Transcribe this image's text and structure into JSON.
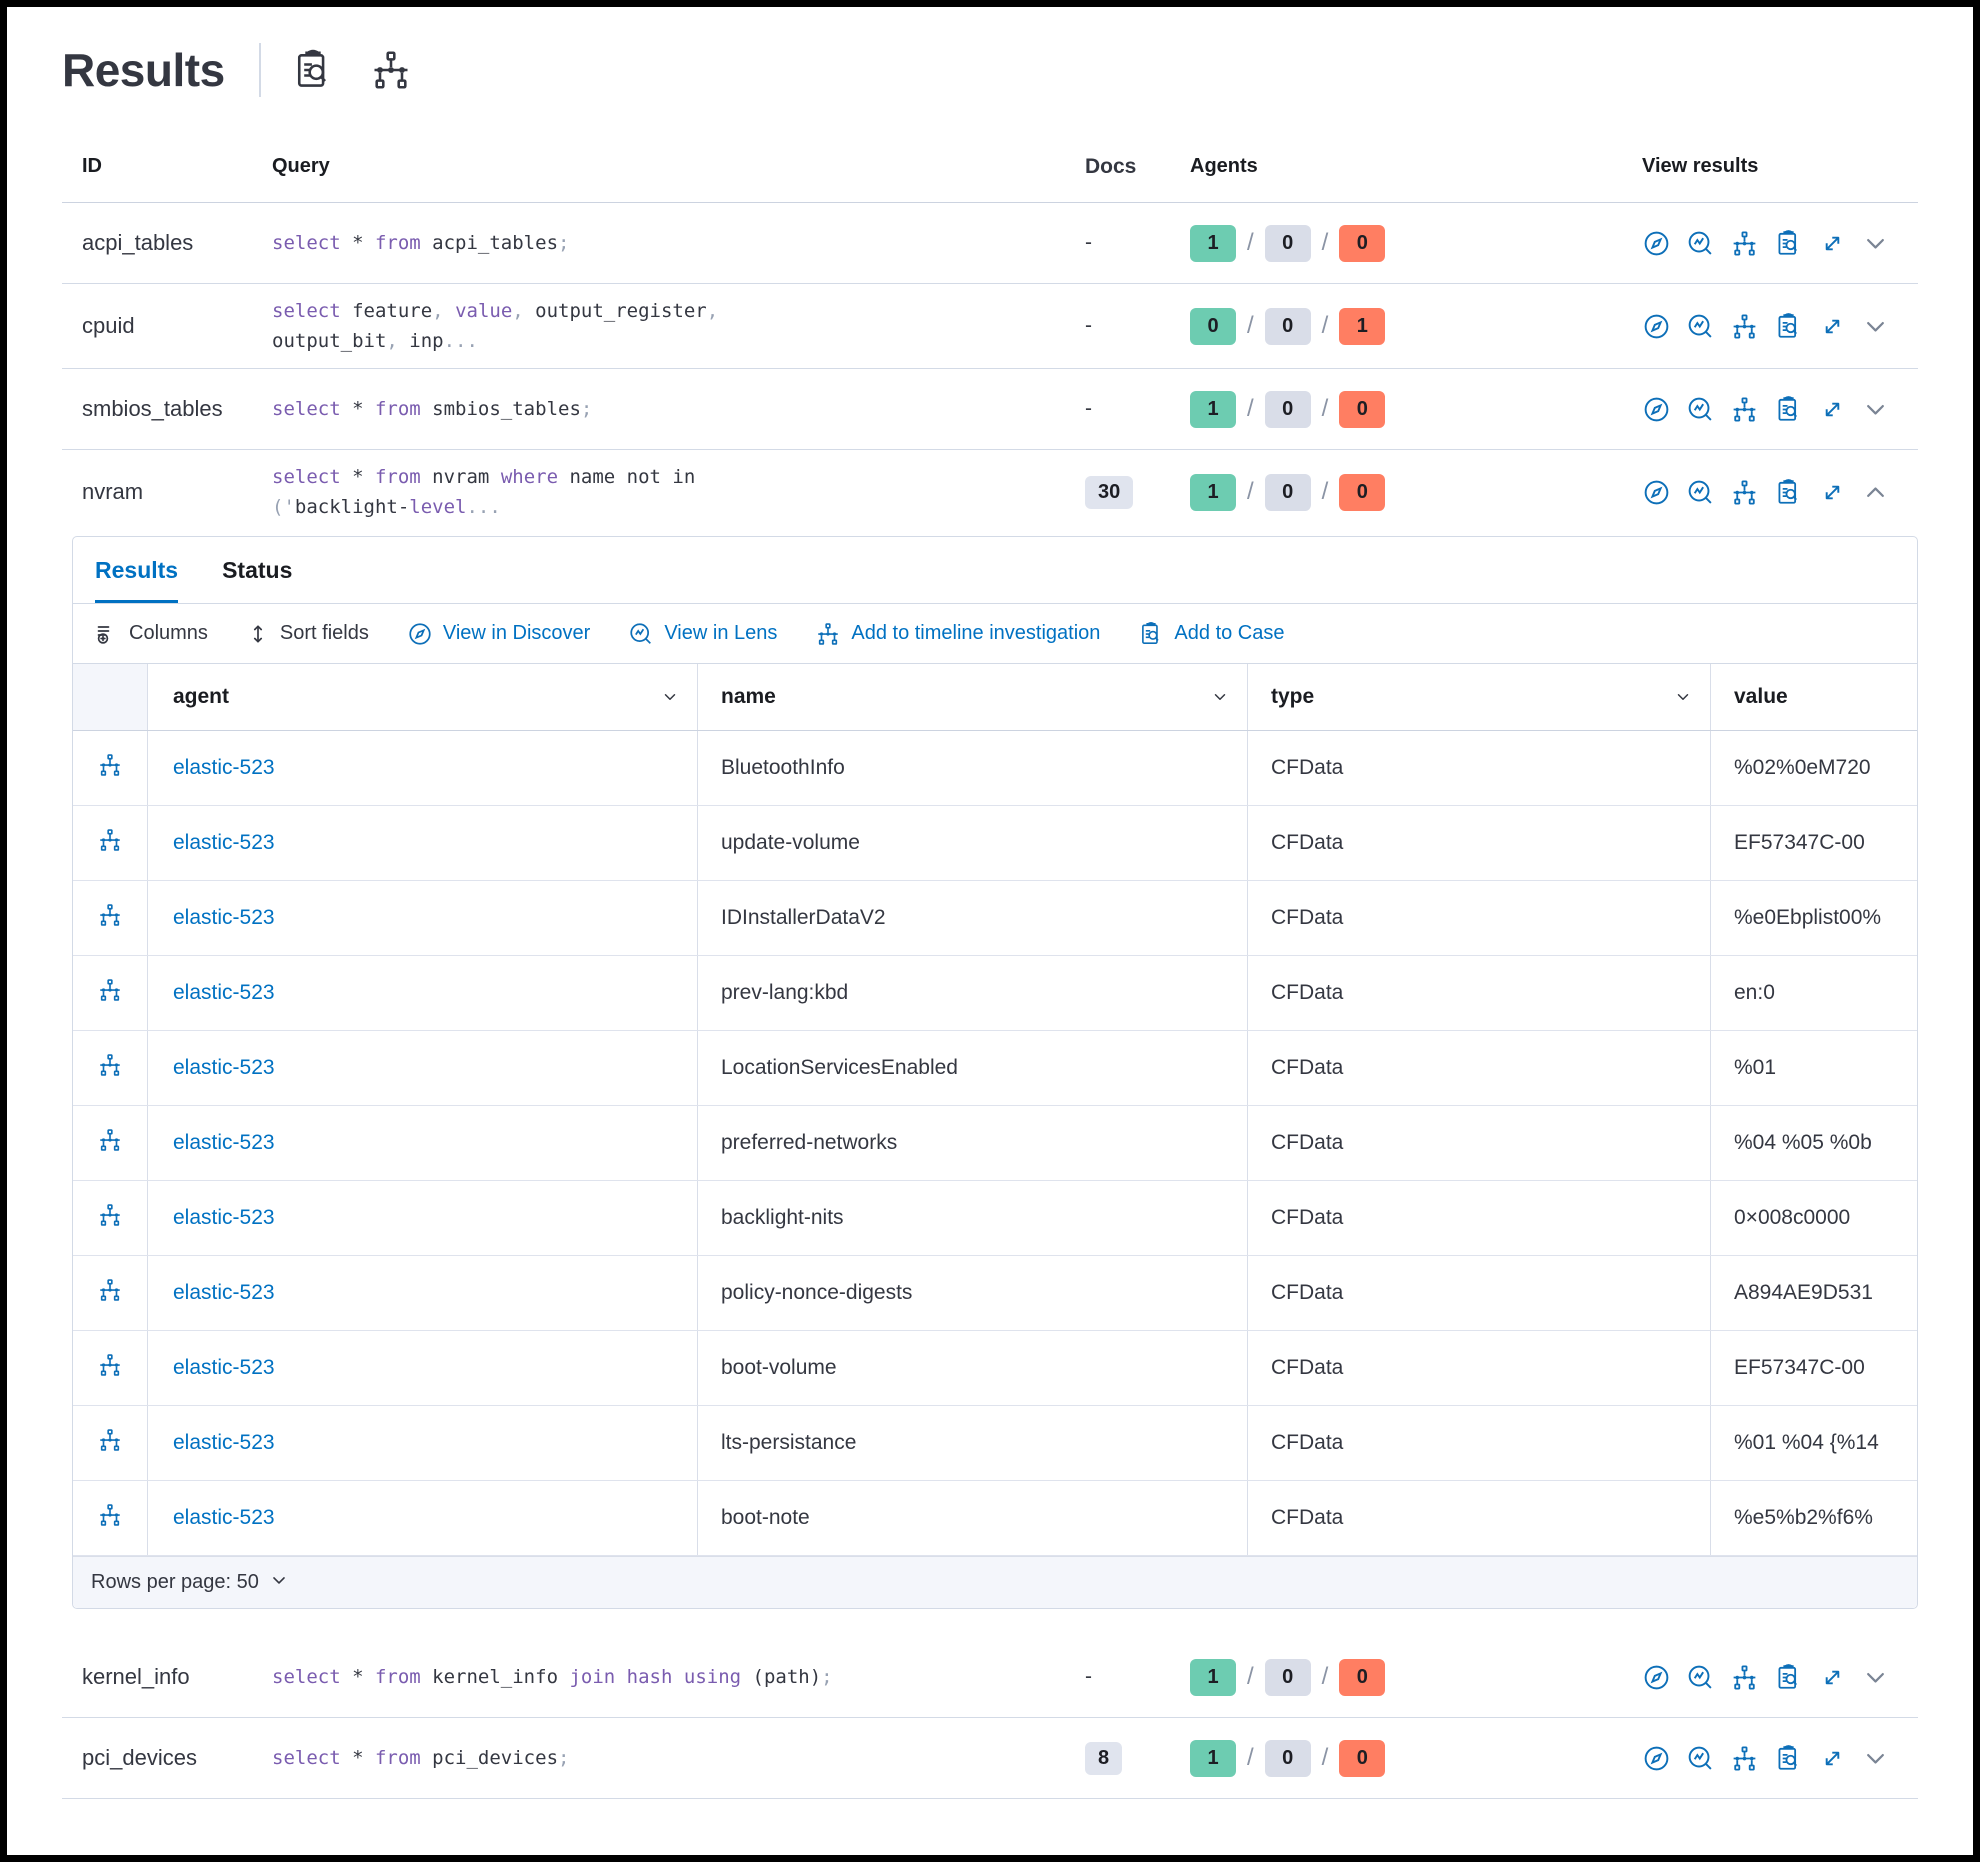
{
  "page": {
    "title": "Results"
  },
  "query_table": {
    "columns": {
      "id": "ID",
      "query": "Query",
      "docs": "Docs",
      "agents": "Agents",
      "view_results": "View results"
    },
    "agents_separator": "/",
    "rows": [
      {
        "id": "acpi_tables",
        "docs": "-",
        "docs_badge": false,
        "agents": [
          "1",
          "0",
          "0"
        ],
        "expanded": false,
        "query": [
          {
            "c": "k",
            "t": "select"
          },
          {
            "c": "d",
            "t": " * "
          },
          {
            "c": "k",
            "t": "from"
          },
          {
            "c": "d",
            "t": " acpi_tables"
          },
          {
            "c": "p",
            "t": ";"
          }
        ]
      },
      {
        "id": "cpuid",
        "docs": "-",
        "docs_badge": false,
        "agents": [
          "0",
          "0",
          "1"
        ],
        "expanded": false,
        "query": [
          {
            "c": "k",
            "t": "select"
          },
          {
            "c": "d",
            "t": " feature"
          },
          {
            "c": "p",
            "t": ","
          },
          {
            "c": "d",
            "t": " "
          },
          {
            "c": "k",
            "t": "value"
          },
          {
            "c": "p",
            "t": ","
          },
          {
            "c": "d",
            "t": " output_register"
          },
          {
            "c": "p",
            "t": ","
          },
          {
            "br": true
          },
          {
            "c": "d",
            "t": "output_bit"
          },
          {
            "c": "p",
            "t": ","
          },
          {
            "c": "d",
            "t": " inp"
          },
          {
            "c": "p",
            "t": "..."
          }
        ]
      },
      {
        "id": "smbios_tables",
        "docs": "-",
        "docs_badge": false,
        "agents": [
          "1",
          "0",
          "0"
        ],
        "expanded": false,
        "query": [
          {
            "c": "k",
            "t": "select"
          },
          {
            "c": "d",
            "t": " * "
          },
          {
            "c": "k",
            "t": "from"
          },
          {
            "c": "d",
            "t": " smbios_tables"
          },
          {
            "c": "p",
            "t": ";"
          }
        ]
      },
      {
        "id": "nvram",
        "docs": "30",
        "docs_badge": true,
        "agents": [
          "1",
          "0",
          "0"
        ],
        "expanded": true,
        "query": [
          {
            "c": "k",
            "t": "select"
          },
          {
            "c": "d",
            "t": " * "
          },
          {
            "c": "k",
            "t": "from"
          },
          {
            "c": "d",
            "t": " nvram "
          },
          {
            "c": "k",
            "t": "where"
          },
          {
            "c": "d",
            "t": " name not in"
          },
          {
            "br": true
          },
          {
            "c": "p",
            "t": "('"
          },
          {
            "c": "d",
            "t": "backlight-"
          },
          {
            "c": "k",
            "t": "level"
          },
          {
            "c": "p",
            "t": "..."
          }
        ]
      },
      {
        "id": "kernel_info",
        "docs": "-",
        "docs_badge": false,
        "agents": [
          "1",
          "0",
          "0"
        ],
        "expanded": false,
        "query": [
          {
            "c": "k",
            "t": "select"
          },
          {
            "c": "d",
            "t": " * "
          },
          {
            "c": "k",
            "t": "from"
          },
          {
            "c": "d",
            "t": " kernel_info "
          },
          {
            "c": "k",
            "t": "join"
          },
          {
            "c": "d",
            "t": " "
          },
          {
            "c": "k",
            "t": "hash"
          },
          {
            "c": "d",
            "t": " "
          },
          {
            "c": "k",
            "t": "using"
          },
          {
            "c": "d",
            "t": " (path)"
          },
          {
            "c": "p",
            "t": ";"
          }
        ]
      },
      {
        "id": "pci_devices",
        "docs": "8",
        "docs_badge": true,
        "agents": [
          "1",
          "0",
          "0"
        ],
        "expanded": false,
        "query": [
          {
            "c": "k",
            "t": "select"
          },
          {
            "c": "d",
            "t": " * "
          },
          {
            "c": "k",
            "t": "from"
          },
          {
            "c": "d",
            "t": " pci_devices"
          },
          {
            "c": "p",
            "t": ";"
          }
        ]
      }
    ]
  },
  "panel": {
    "tabs": [
      {
        "label": "Results"
      },
      {
        "label": "Status"
      }
    ],
    "toolbar": [
      {
        "label": "Columns",
        "icon": "columns",
        "style": "plain",
        "name": "columns-button"
      },
      {
        "label": "Sort fields",
        "icon": "sort",
        "style": "plain",
        "name": "sort-fields-button"
      },
      {
        "label": "View in Discover",
        "icon": "discover",
        "style": "link",
        "name": "view-in-discover-link"
      },
      {
        "label": "View in Lens",
        "icon": "lens",
        "style": "link",
        "name": "view-in-lens-link"
      },
      {
        "label": "Add to timeline investigation",
        "icon": "timeline",
        "style": "link",
        "name": "add-to-timeline-button"
      },
      {
        "label": "Add to Case",
        "icon": "case",
        "style": "link",
        "name": "add-to-case-button"
      }
    ],
    "grid": {
      "columns": [
        "agent",
        "name",
        "type",
        "value"
      ],
      "rows": [
        {
          "agent": "elastic-523",
          "name": "BluetoothInfo",
          "type": "CFData",
          "value": "%02%0eM720"
        },
        {
          "agent": "elastic-523",
          "name": "update-volume",
          "type": "CFData",
          "value": "EF57347C-00"
        },
        {
          "agent": "elastic-523",
          "name": "IDInstallerDataV2",
          "type": "CFData",
          "value": "%e0Ebplist00%"
        },
        {
          "agent": "elastic-523",
          "name": "prev-lang:kbd",
          "type": "CFData",
          "value": "en:0"
        },
        {
          "agent": "elastic-523",
          "name": "LocationServicesEnabled",
          "type": "CFData",
          "value": "%01"
        },
        {
          "agent": "elastic-523",
          "name": "preferred-networks",
          "type": "CFData",
          "value": "%04 %05 %0b"
        },
        {
          "agent": "elastic-523",
          "name": "backlight-nits",
          "type": "CFData",
          "value": "0×008c0000"
        },
        {
          "agent": "elastic-523",
          "name": "policy-nonce-digests",
          "type": "CFData",
          "value": "A894AE9D531"
        },
        {
          "agent": "elastic-523",
          "name": "boot-volume",
          "type": "CFData",
          "value": "EF57347C-00"
        },
        {
          "agent": "elastic-523",
          "name": "lts-persistance",
          "type": "CFData",
          "value": "%01 %04 {%14"
        },
        {
          "agent": "elastic-523",
          "name": "boot-note",
          "type": "CFData",
          "value": "%e5%b2%f6%"
        }
      ]
    },
    "footer": {
      "rows_per_page_label": "Rows per page: 50"
    }
  },
  "colors": {
    "accent_blue": "#0071c2",
    "keyword_purple": "#7a5caf",
    "badge_success": "#6dccb1",
    "badge_neutral": "#d9dde8",
    "badge_danger": "#ff7e62"
  }
}
